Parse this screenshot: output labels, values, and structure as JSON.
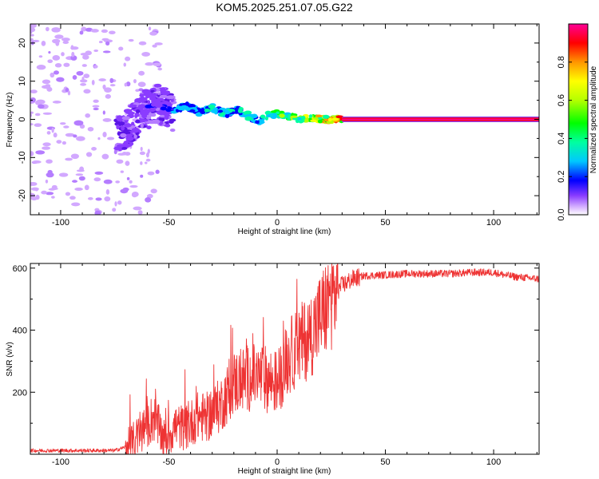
{
  "title": "KOM5.2025.251.07.05.G22",
  "chart_data": [
    {
      "type": "heatmap",
      "name": "spectrogram",
      "xlabel": "Height of straight line (km)",
      "ylabel": "Frequency (Hz)",
      "xlim": [
        -114,
        121
      ],
      "ylim": [
        -25,
        25
      ],
      "xticks": [
        -100,
        -50,
        0,
        50,
        100
      ],
      "xtick_labels": [
        "-100",
        "-50",
        "0",
        "50",
        "100"
      ],
      "yticks": [
        -20,
        -10,
        0,
        10,
        20
      ],
      "ytick_labels": [
        "-20",
        "-10",
        "0",
        "10",
        "20"
      ],
      "colorbar": {
        "label": "Normalized spectral amplitude",
        "range": [
          0,
          1
        ],
        "ticks": [
          0.0,
          0.2,
          0.4,
          0.6,
          0.8
        ],
        "tick_labels": [
          "0.0",
          "0.2",
          "0.4",
          "0.6",
          "0.8"
        ]
      },
      "ridge": {
        "x": [
          -70,
          -62,
          -55,
          -48,
          -42,
          -36,
          -30,
          -24,
          -18,
          -12,
          -8,
          -4,
          0,
          5,
          10,
          15,
          20,
          25,
          30,
          121
        ],
        "frequency": [
          -3.5,
          2.0,
          4.0,
          2.0,
          3.5,
          2.0,
          3.0,
          1.5,
          2.5,
          0.5,
          -0.5,
          1.0,
          1.5,
          1.0,
          0.0,
          0.5,
          0.0,
          0.0,
          0.0,
          0.0
        ],
        "amplitude": [
          0.1,
          0.15,
          0.2,
          0.3,
          0.35,
          0.3,
          0.4,
          0.35,
          0.35,
          0.4,
          0.3,
          0.45,
          0.55,
          0.6,
          0.65,
          0.7,
          0.75,
          0.8,
          0.9,
          0.95
        ]
      }
    },
    {
      "type": "line",
      "name": "snr",
      "xlabel": "Height of straight line (km)",
      "ylabel": "SNR (v/v)",
      "xlim": [
        -114,
        121
      ],
      "ylim": [
        0,
        615
      ],
      "xticks": [
        -100,
        -50,
        0,
        50,
        100
      ],
      "xtick_labels": [
        "-100",
        "-50",
        "0",
        "50",
        "100"
      ],
      "yticks": [
        200,
        400,
        600
      ],
      "ytick_labels": [
        "200",
        "400",
        "600"
      ],
      "color": "#ee3333",
      "trend": {
        "x": [
          -114,
          -75,
          -68,
          -62,
          -57,
          -52,
          -47,
          -42,
          -37,
          -32,
          -26,
          -20,
          -14,
          -8,
          -4,
          0,
          5,
          10,
          15,
          20,
          25,
          30,
          35,
          40,
          50,
          60,
          80,
          90,
          100,
          105,
          110,
          121
        ],
        "y": [
          12,
          12,
          28,
          75,
          120,
          45,
          90,
          85,
          120,
          120,
          160,
          230,
          245,
          250,
          240,
          230,
          310,
          350,
          380,
          440,
          500,
          545,
          565,
          575,
          578,
          582,
          582,
          586,
          586,
          578,
          572,
          565
        ]
      }
    }
  ]
}
